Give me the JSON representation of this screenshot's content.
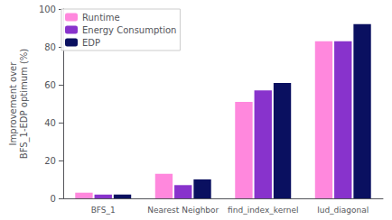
{
  "chart_data": {
    "type": "bar",
    "ylabel": "Improvement over\nBFS_1-EDP optimum (%)",
    "categories": [
      "BFS_1",
      "Nearest Neighbor",
      "find_index_kernel",
      "lud_diagonal"
    ],
    "series": [
      {
        "name": "Runtime",
        "color": "#FF88DD",
        "values": [
          3,
          13,
          51,
          83
        ]
      },
      {
        "name": "Energy Consumption",
        "color": "#8833CC",
        "values": [
          2,
          7,
          57,
          83
        ]
      },
      {
        "name": "EDP",
        "color": "#0A1060",
        "values": [
          2,
          10,
          61,
          92
        ]
      }
    ],
    "ylim": [
      0,
      100
    ],
    "yticks": [
      0,
      20,
      40,
      60,
      80,
      100
    ],
    "grid": false,
    "legend": "upper left"
  }
}
